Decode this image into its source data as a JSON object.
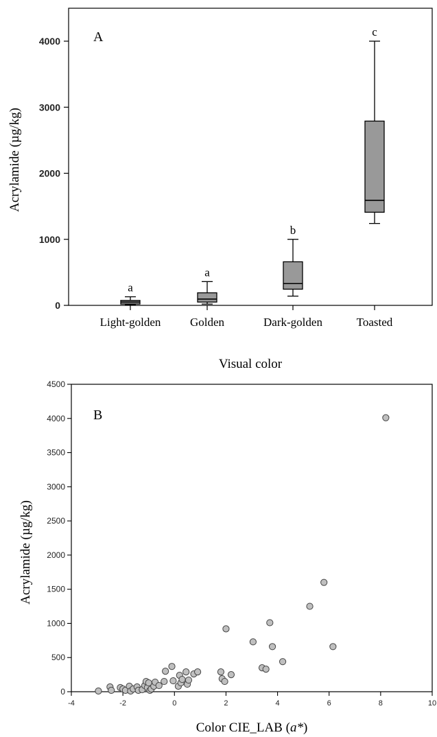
{
  "chart_data": [
    {
      "type": "box",
      "panel_label": "A",
      "xlabel": "Visual color",
      "ylabel": "Acrylamide  (µg/kg)",
      "ylim": [
        0,
        4000
      ],
      "yticks": [
        0,
        1000,
        2000,
        3000,
        4000
      ],
      "categories": [
        "Light-golden",
        "Golden",
        "Dark-golden",
        "Toasted"
      ],
      "boxes": [
        {
          "category": "Light-golden",
          "min": 10,
          "q1": 20,
          "median": 50,
          "q3": 75,
          "max": 130,
          "letter": "a"
        },
        {
          "category": "Golden",
          "min": 20,
          "q1": 50,
          "median": 95,
          "q3": 190,
          "max": 360,
          "letter": "a"
        },
        {
          "category": "Dark-golden",
          "min": 140,
          "q1": 245,
          "median": 330,
          "q3": 660,
          "max": 1000,
          "letter": "b"
        },
        {
          "category": "Toasted",
          "min": 1240,
          "q1": 1410,
          "median": 1590,
          "q3": 2790,
          "max": 4000,
          "letter": "c"
        }
      ],
      "box_color": "#999999",
      "grid": false
    },
    {
      "type": "scatter",
      "panel_label": "B",
      "xlabel": "Color CIE_LAB",
      "xlabel_var": "a*",
      "ylabel": "Acrylamide  (µg/kg)",
      "xlim": [
        -4,
        10
      ],
      "ylim": [
        0,
        4500
      ],
      "xticks": [
        -4,
        -2,
        0,
        2,
        4,
        6,
        8,
        10
      ],
      "yticks": [
        0,
        500,
        1000,
        1500,
        2000,
        2500,
        3000,
        3500,
        4000,
        4500
      ],
      "marker_color": "#bfbfbf",
      "grid": false,
      "points": [
        {
          "x": -2.95,
          "y": 10
        },
        {
          "x": -2.5,
          "y": 70
        },
        {
          "x": -2.45,
          "y": 20
        },
        {
          "x": -2.1,
          "y": 60
        },
        {
          "x": -2.0,
          "y": 40
        },
        {
          "x": -1.9,
          "y": 20
        },
        {
          "x": -1.75,
          "y": 80
        },
        {
          "x": -1.7,
          "y": 10
        },
        {
          "x": -1.6,
          "y": 40
        },
        {
          "x": -1.45,
          "y": 70
        },
        {
          "x": -1.4,
          "y": 20
        },
        {
          "x": -1.25,
          "y": 30
        },
        {
          "x": -1.15,
          "y": 90
        },
        {
          "x": -1.1,
          "y": 150
        },
        {
          "x": -1.05,
          "y": 60
        },
        {
          "x": -1.0,
          "y": 130
        },
        {
          "x": -0.95,
          "y": 20
        },
        {
          "x": -0.9,
          "y": 40
        },
        {
          "x": -0.8,
          "y": 80
        },
        {
          "x": -0.75,
          "y": 140
        },
        {
          "x": -0.6,
          "y": 90
        },
        {
          "x": -0.4,
          "y": 150
        },
        {
          "x": -0.35,
          "y": 300
        },
        {
          "x": -0.1,
          "y": 370
        },
        {
          "x": -0.05,
          "y": 160
        },
        {
          "x": 0.15,
          "y": 80
        },
        {
          "x": 0.2,
          "y": 240
        },
        {
          "x": 0.25,
          "y": 130
        },
        {
          "x": 0.3,
          "y": 180
        },
        {
          "x": 0.45,
          "y": 290
        },
        {
          "x": 0.5,
          "y": 110
        },
        {
          "x": 0.55,
          "y": 170
        },
        {
          "x": 0.75,
          "y": 260
        },
        {
          "x": 0.9,
          "y": 290
        },
        {
          "x": 1.8,
          "y": 290
        },
        {
          "x": 1.85,
          "y": 190
        },
        {
          "x": 1.95,
          "y": 150
        },
        {
          "x": 2.0,
          "y": 920
        },
        {
          "x": 2.2,
          "y": 250
        },
        {
          "x": 3.05,
          "y": 730
        },
        {
          "x": 3.4,
          "y": 350
        },
        {
          "x": 3.55,
          "y": 330
        },
        {
          "x": 3.7,
          "y": 1010
        },
        {
          "x": 3.8,
          "y": 660
        },
        {
          "x": 4.2,
          "y": 440
        },
        {
          "x": 5.25,
          "y": 1250
        },
        {
          "x": 5.8,
          "y": 1600
        },
        {
          "x": 6.15,
          "y": 660
        },
        {
          "x": 8.2,
          "y": 4010
        }
      ]
    }
  ]
}
